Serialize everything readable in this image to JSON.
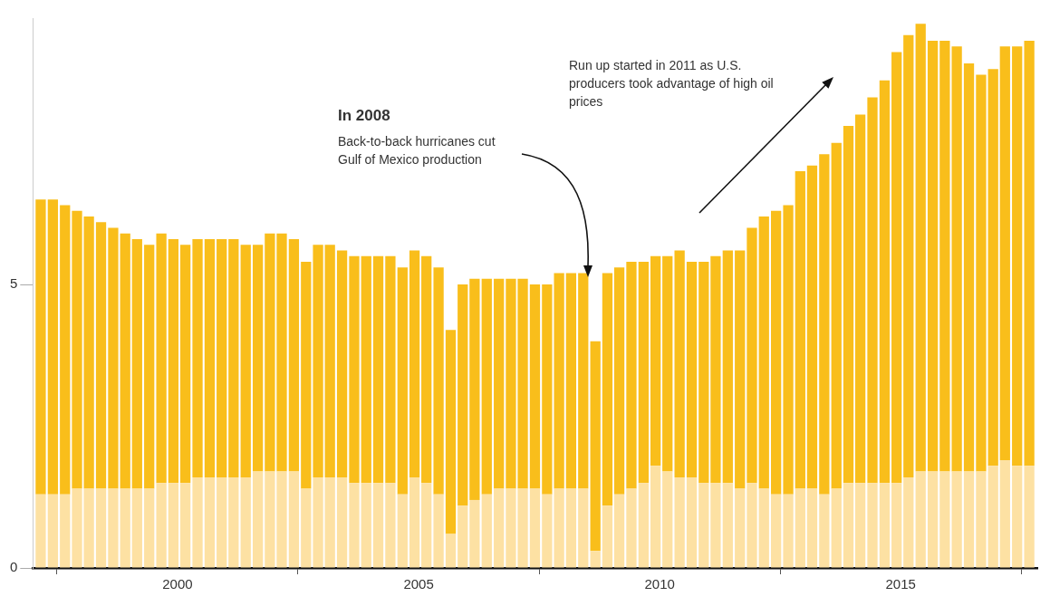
{
  "chart_data": {
    "type": "bar",
    "stacked": true,
    "x": [
      "1997-03",
      "1997-06",
      "1997-09",
      "1997-12",
      "1998-03",
      "1998-06",
      "1998-09",
      "1998-12",
      "1999-03",
      "1999-06",
      "1999-09",
      "1999-12",
      "2000-03",
      "2000-06",
      "2000-09",
      "2000-12",
      "2001-03",
      "2001-06",
      "2001-09",
      "2001-12",
      "2002-03",
      "2002-06",
      "2002-09",
      "2002-12",
      "2003-03",
      "2003-06",
      "2003-09",
      "2003-12",
      "2004-03",
      "2004-06",
      "2004-09",
      "2004-12",
      "2005-03",
      "2005-06",
      "2005-09",
      "2005-12",
      "2006-03",
      "2006-06",
      "2006-09",
      "2006-12",
      "2007-03",
      "2007-06",
      "2007-09",
      "2007-12",
      "2008-03",
      "2008-06",
      "2008-09",
      "2008-12",
      "2009-03",
      "2009-06",
      "2009-09",
      "2009-12",
      "2010-03",
      "2010-06",
      "2010-09",
      "2010-12",
      "2011-03",
      "2011-06",
      "2011-09",
      "2011-12",
      "2012-03",
      "2012-06",
      "2012-09",
      "2012-12",
      "2013-03",
      "2013-06",
      "2013-09",
      "2013-12",
      "2014-03",
      "2014-06",
      "2014-09",
      "2014-12",
      "2015-03",
      "2015-06",
      "2015-09",
      "2015-12",
      "2016-03",
      "2016-06",
      "2016-09",
      "2016-12",
      "2017-03",
      "2017-06",
      "2017-09"
    ],
    "series": [
      {
        "color": "#fde1a3",
        "values": [
          1.3,
          1.3,
          1.3,
          1.4,
          1.4,
          1.4,
          1.4,
          1.4,
          1.4,
          1.4,
          1.5,
          1.5,
          1.5,
          1.6,
          1.6,
          1.6,
          1.6,
          1.6,
          1.7,
          1.7,
          1.7,
          1.7,
          1.4,
          1.6,
          1.6,
          1.6,
          1.5,
          1.5,
          1.5,
          1.5,
          1.3,
          1.6,
          1.5,
          1.3,
          0.6,
          1.1,
          1.2,
          1.3,
          1.4,
          1.4,
          1.4,
          1.4,
          1.3,
          1.4,
          1.4,
          1.4,
          0.3,
          1.1,
          1.3,
          1.4,
          1.5,
          1.8,
          1.7,
          1.6,
          1.6,
          1.5,
          1.5,
          1.5,
          1.4,
          1.5,
          1.4,
          1.3,
          1.3,
          1.4,
          1.4,
          1.3,
          1.4,
          1.5,
          1.5,
          1.5,
          1.5,
          1.5,
          1.6,
          1.7,
          1.7,
          1.7,
          1.7,
          1.7,
          1.7,
          1.8,
          1.9,
          1.8,
          1.8
        ]
      },
      {
        "color": "#f9be1b",
        "values": [
          5.2,
          5.2,
          5.1,
          4.9,
          4.8,
          4.7,
          4.6,
          4.5,
          4.4,
          4.3,
          4.4,
          4.3,
          4.2,
          4.2,
          4.2,
          4.2,
          4.2,
          4.1,
          4.0,
          4.2,
          4.2,
          4.1,
          4.0,
          4.1,
          4.1,
          4.0,
          4.0,
          4.0,
          4.0,
          4.0,
          4.0,
          4.0,
          4.0,
          4.0,
          3.6,
          3.9,
          3.9,
          3.8,
          3.7,
          3.7,
          3.7,
          3.6,
          3.7,
          3.8,
          3.8,
          3.8,
          3.7,
          4.1,
          4.0,
          4.0,
          3.9,
          3.7,
          3.8,
          4.0,
          3.8,
          3.9,
          4.0,
          4.1,
          4.2,
          4.5,
          4.8,
          5.0,
          5.1,
          5.6,
          5.7,
          6.0,
          6.1,
          6.3,
          6.5,
          6.8,
          7.1,
          7.6,
          7.8,
          7.9,
          7.6,
          7.6,
          7.5,
          7.2,
          7.0,
          7.0,
          7.3,
          7.4,
          7.5
        ]
      }
    ],
    "xlim": [
      "1997-01",
      "2017-11"
    ],
    "xticks": [
      "2000",
      "2005",
      "2010",
      "2015"
    ],
    "ylim": [
      0,
      9.7
    ],
    "yticks": [
      0,
      5
    ],
    "legend": false,
    "annotations": [
      "In 2008",
      "Back-to-back hurricanes cut Gulf of Mexico production",
      "Run up started in 2011 as U.S. producers took advantage of high oil prices"
    ]
  }
}
